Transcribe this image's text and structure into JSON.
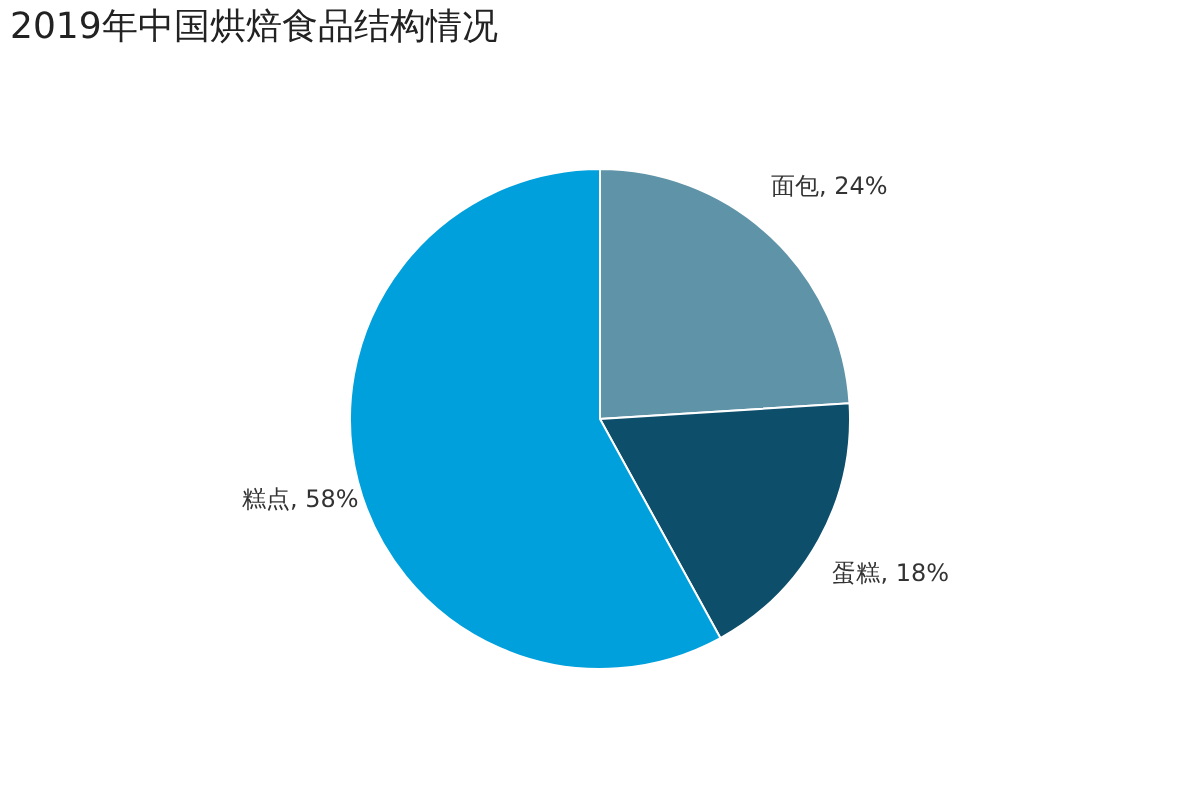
{
  "chart_data": {
    "type": "pie",
    "title": "2019年中国烘焙食品结构情况",
    "categories": [
      "面包",
      "蛋糕",
      "糕点"
    ],
    "values": [
      24,
      18,
      58
    ],
    "colors": [
      "#5f93a8",
      "#0d4f6b",
      "#00a0dc"
    ],
    "value_labels": [
      ", 24%",
      ", 18%",
      ", 58%"
    ],
    "legend": false
  }
}
